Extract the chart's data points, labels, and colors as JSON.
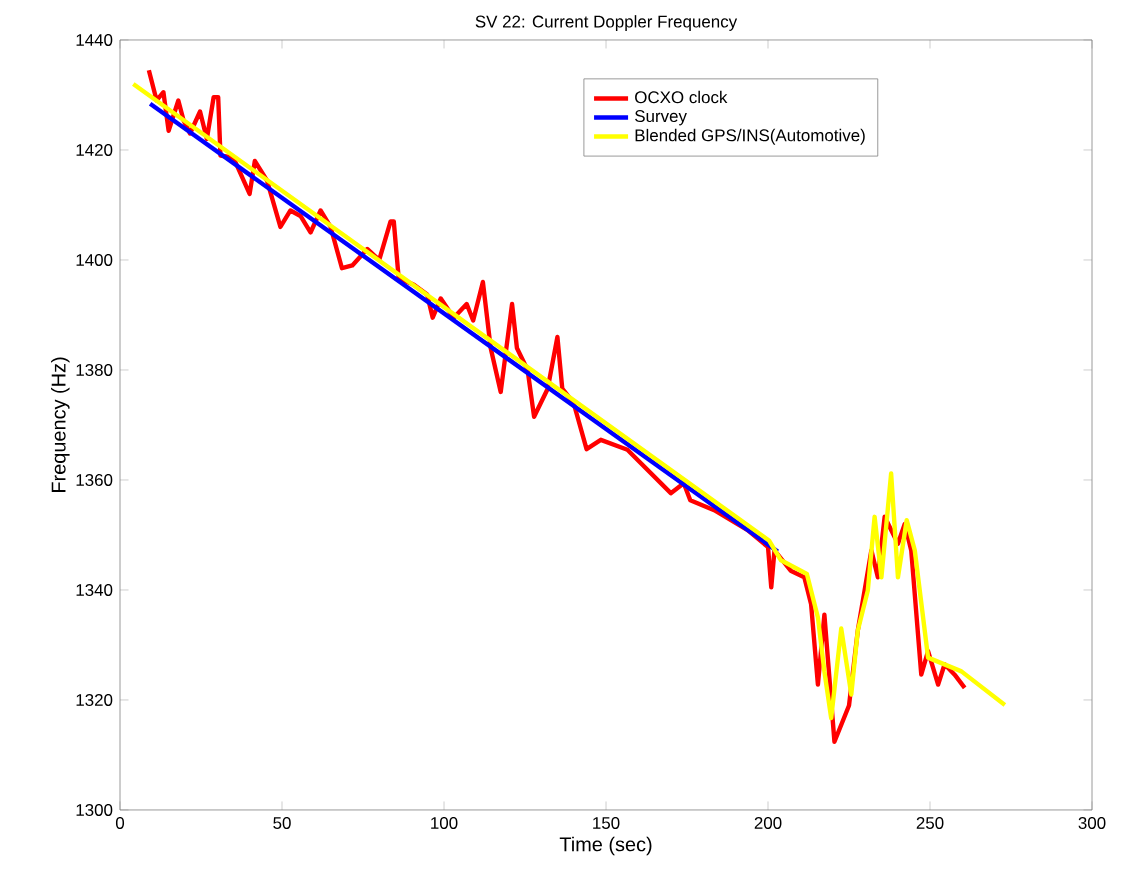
{
  "chart_data": {
    "type": "line",
    "title": "SV 22: Current Doppler Frequency",
    "xlabel": "Time (sec)",
    "ylabel": "Frequency (Hz)",
    "xlim": [
      0,
      300
    ],
    "ylim": [
      1300,
      1440
    ],
    "xticks": [
      0,
      50,
      100,
      150,
      200,
      250,
      300
    ],
    "yticks": [
      1300,
      1320,
      1340,
      1360,
      1380,
      1400,
      1420,
      1440
    ],
    "legend": "top right",
    "marker": "none",
    "line_style": "solid",
    "series": [
      {
        "name": "OCXO clock",
        "color": "#ff0000",
        "x": [
          8.9,
          11.3,
          13.4,
          15,
          18,
          19.6,
          21.6,
          24.7,
          26.8,
          28.9,
          30.3,
          31,
          35,
          40,
          41.6,
          45.4,
          49.5,
          52.6,
          55.7,
          58.8,
          61.9,
          65,
          68.5,
          71.7,
          76.3,
          80,
          83.5,
          84.5,
          86,
          90.7,
          94.8,
          96.5,
          99,
          103,
          107,
          109,
          112,
          114.4,
          117.5,
          121,
          122.5,
          125.8,
          127.8,
          132,
          135,
          136.5,
          140,
          144,
          148.4,
          156.6,
          170,
          174,
          176,
          183.4,
          193.7,
          200,
          201,
          202,
          207,
          211.2,
          213.3,
          215.4,
          217.4,
          220.5,
          222.6,
          225,
          227.7,
          229.8,
          231.9,
          233.9,
          236,
          238,
          240.1,
          242.2,
          244.2,
          247.3,
          249.4,
          252.5,
          254.5,
          257.6,
          260.7
        ],
        "values": [
          1434.5,
          1429,
          1430.5,
          1423.5,
          1429,
          1425.4,
          1423,
          1427,
          1422,
          1429.6,
          1429.6,
          1419,
          1418.6,
          1412,
          1418,
          1414.4,
          1406,
          1409,
          1408,
          1405,
          1409,
          1406,
          1398.5,
          1399,
          1402,
          1400,
          1407,
          1407,
          1396.7,
          1395.5,
          1393.7,
          1389.5,
          1393,
          1389.5,
          1392,
          1389,
          1396,
          1384,
          1376,
          1392,
          1384,
          1380,
          1371.5,
          1376.6,
          1386,
          1376.6,
          1374,
          1365.6,
          1367.3,
          1365.5,
          1357.6,
          1359.4,
          1356.3,
          1354.5,
          1350.9,
          1347.8,
          1340.5,
          1347.2,
          1343.5,
          1342.3,
          1337.4,
          1322.8,
          1335.5,
          1312.4,
          null,
          1319,
          1332.6,
          1339.9,
          1347.2,
          1342.3,
          1353.3,
          null,
          1348.4,
          1352,
          1347.2,
          1324.6,
          1328.9,
          1322.8,
          1326.5,
          1324.6,
          1322.2
        ]
      },
      {
        "name": "Survey",
        "color": "#0000ff",
        "x": [
          9.3,
          203
        ],
        "values": [
          1428.4,
          1347
        ]
      },
      {
        "name": "Blended GPS/INS(Automotive)",
        "color": "#ffff00",
        "x": [
          4.1,
          200.3,
          204,
          212,
          215.4,
          217.4,
          219.5,
          222.6,
          225.7,
          227.7,
          230.8,
          232.9,
          235,
          238,
          240.1,
          242.8,
          245.3,
          249.4,
          259.7,
          273.1
        ],
        "values": [
          1432,
          1349,
          1345.4,
          1342.9,
          1335,
          1325.2,
          1316.7,
          1333,
          1321,
          1332.6,
          1339.9,
          1353.3,
          1342.3,
          1361.2,
          1342.3,
          1352.7,
          1347.2,
          1327.7,
          1325.2,
          1319.1
        ]
      }
    ]
  }
}
